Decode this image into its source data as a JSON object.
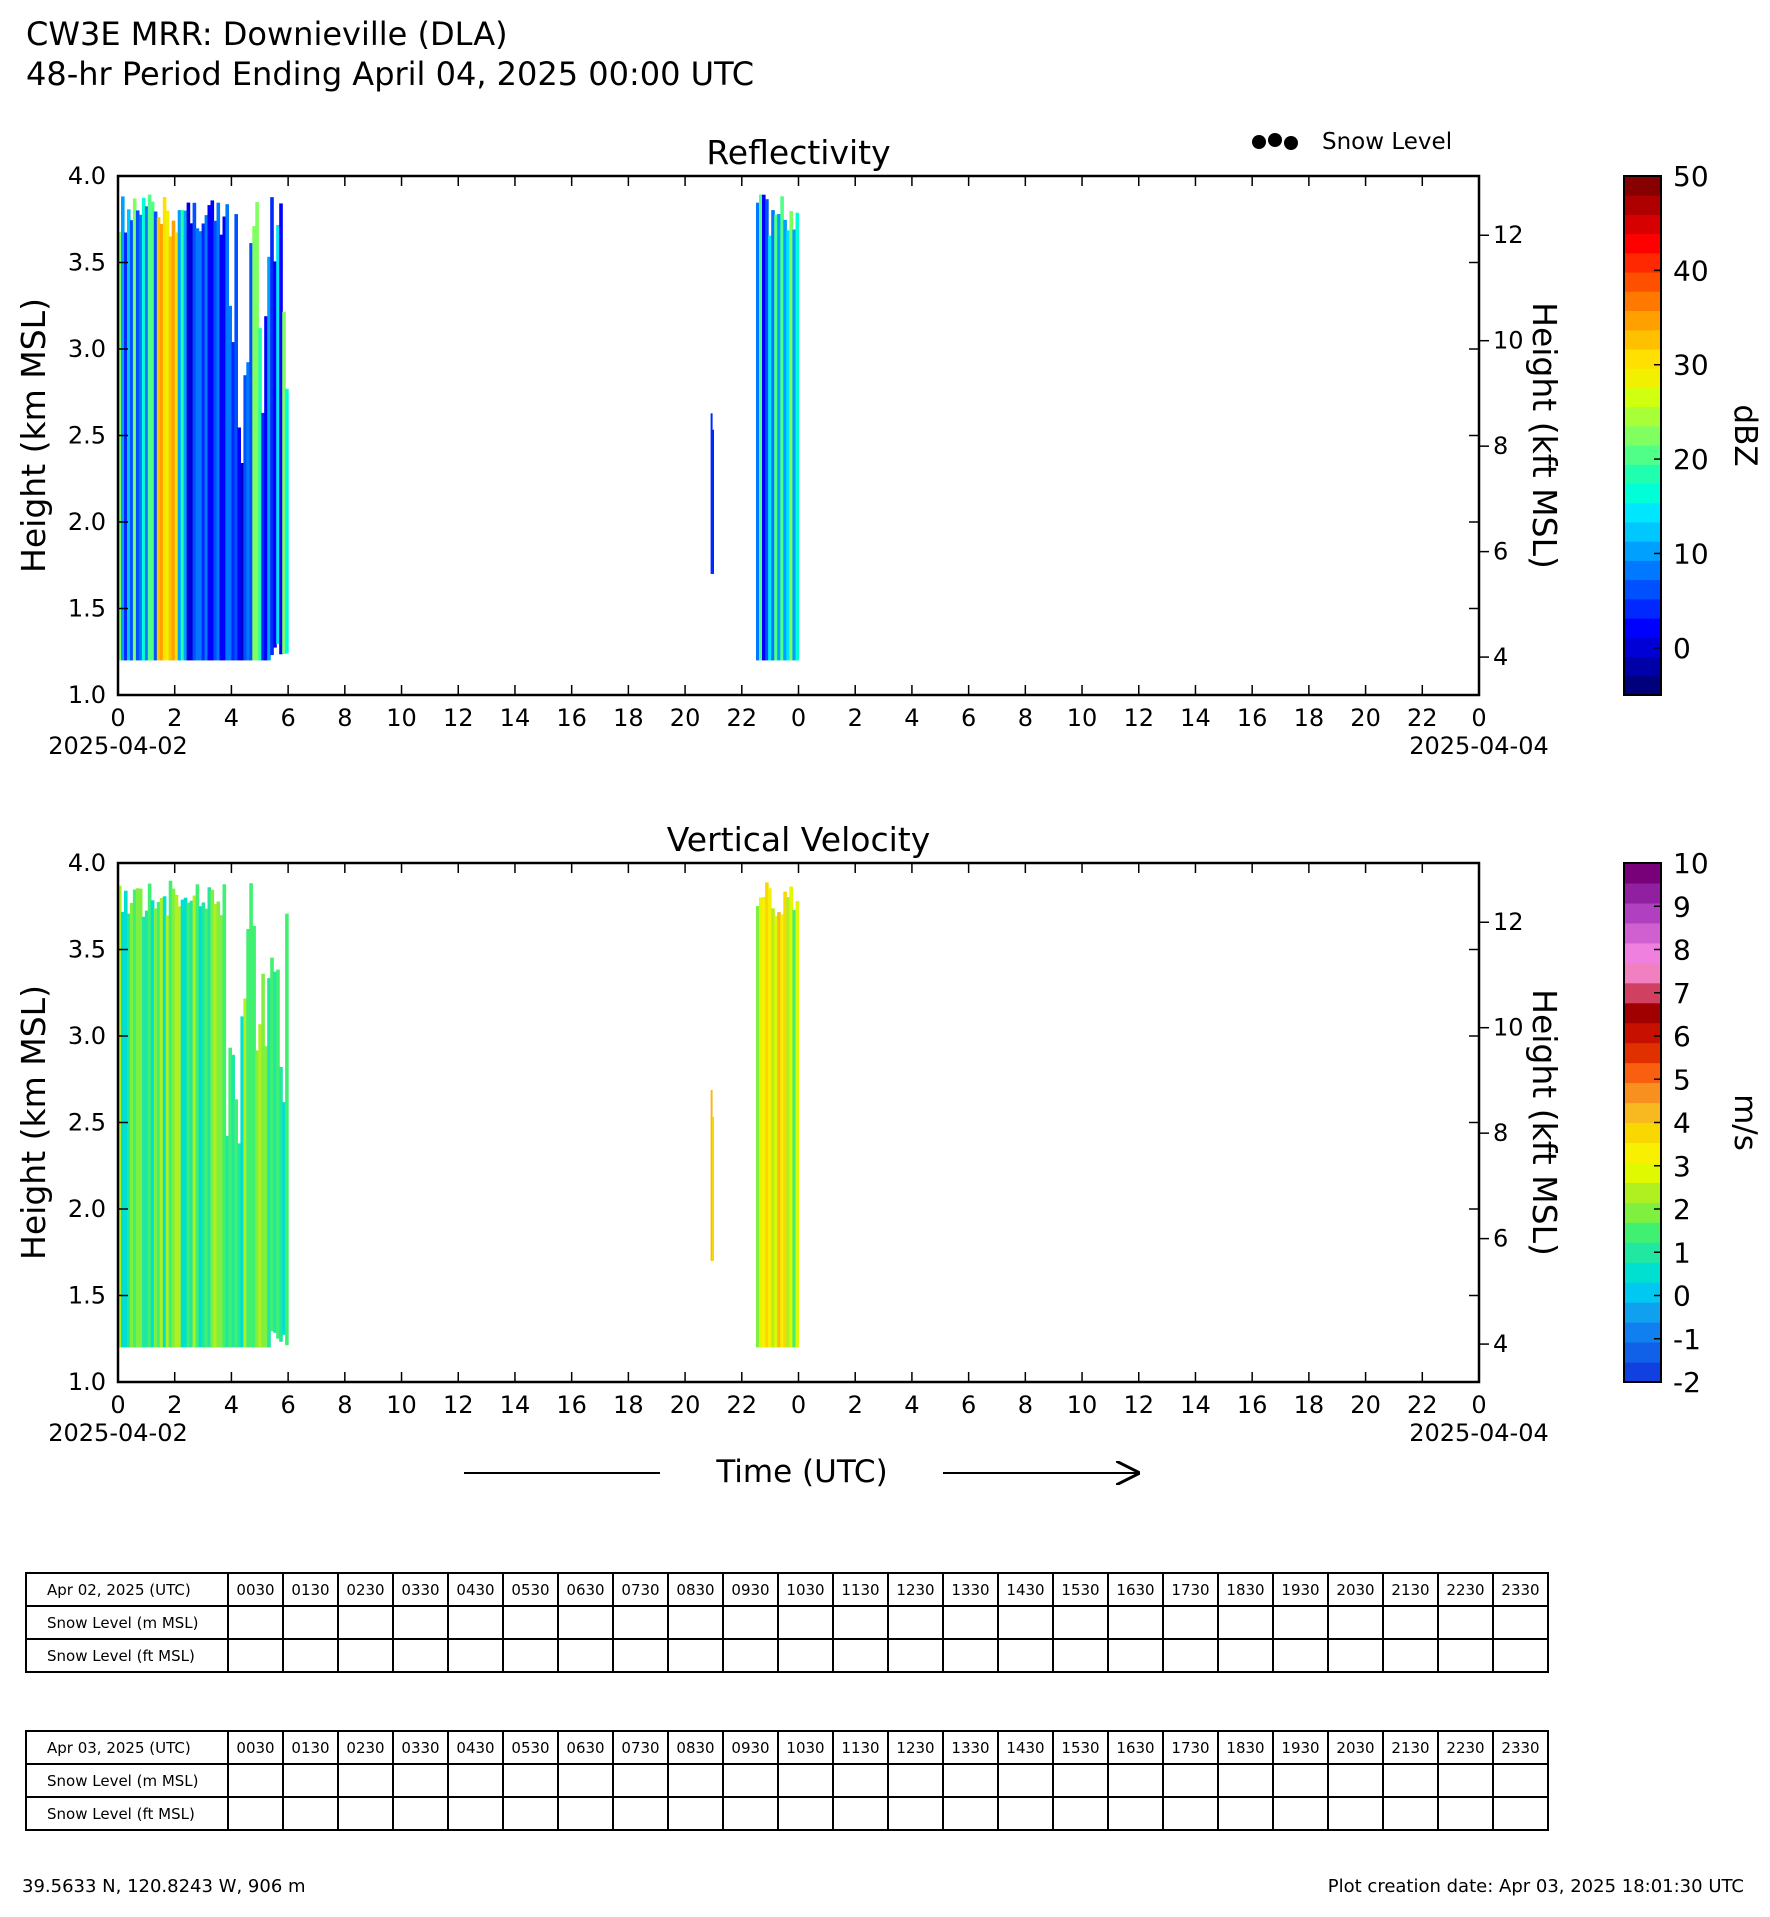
{
  "header": {
    "title_line1": "CW3E MRR: Downieville (DLA)",
    "title_line2": "48-hr Period Ending April 04, 2025 00:00 UTC"
  },
  "legend": {
    "snow_level_label": "Snow Level",
    "placement": "top-right"
  },
  "chart_data": [
    {
      "type": "heatmap",
      "title": "Reflectivity",
      "ylabel": "Height (km MSL)",
      "ylabel_right": "Height (kft MSL)",
      "xlabel": "Time (UTC)",
      "x_start_date": "2025-04-02",
      "x_end_date": "2025-04-04",
      "x_tick_labels": [
        "0",
        "2",
        "4",
        "6",
        "8",
        "10",
        "12",
        "14",
        "16",
        "18",
        "20",
        "22",
        "0",
        "2",
        "4",
        "6",
        "8",
        "10",
        "12",
        "14",
        "16",
        "18",
        "20",
        "22",
        "0"
      ],
      "xlim_hours": [
        0,
        48
      ],
      "ylim": [
        1.0,
        4.0
      ],
      "y_ticks": [
        1.0,
        1.5,
        2.0,
        2.5,
        3.0,
        3.5,
        4.0
      ],
      "y_tick_labels": [
        "1.0",
        "1.5",
        "2.0",
        "2.5",
        "3.0",
        "3.5",
        "4.0"
      ],
      "y_right_ticks_kft": [
        4,
        6,
        8,
        10,
        12
      ],
      "colorbar": {
        "label": "dBZ",
        "range": [
          -5,
          50
        ],
        "ticks": [
          "0",
          "10",
          "20",
          "30",
          "40",
          "50"
        ],
        "tick_values": [
          0,
          10,
          20,
          30,
          40,
          50
        ],
        "colors": [
          "#00007a",
          "#0000a8",
          "#0000d6",
          "#0000ff",
          "#0028ff",
          "#0050ff",
          "#0078ff",
          "#00a0ff",
          "#00c8ff",
          "#00e6ff",
          "#00ffd6",
          "#20ffb0",
          "#50ff88",
          "#80ff60",
          "#a8ff38",
          "#d0ff10",
          "#f0f000",
          "#ffe000",
          "#ffc000",
          "#ffa000",
          "#ff7800",
          "#ff5000",
          "#ff2800",
          "#ff0000",
          "#d60000",
          "#ae0000",
          "#860000"
        ]
      },
      "echo_regions": [
        {
          "t_start": 0.0,
          "t_end": 6.0,
          "z_bottom": 1.2,
          "z_top": 3.9,
          "dominant_dbz": "10-25",
          "max_dbz": 38
        },
        {
          "t_start": 20.9,
          "t_end": 21.0,
          "z_bottom": 1.7,
          "z_top": 2.7,
          "dominant_dbz": "0-5"
        },
        {
          "t_start": 22.5,
          "t_end": 24.0,
          "z_bottom": 1.2,
          "z_top": 3.9,
          "dominant_dbz": "5-20"
        }
      ]
    },
    {
      "type": "heatmap",
      "title": "Vertical Velocity",
      "ylabel": "Height (km MSL)",
      "ylabel_right": "Height (kft MSL)",
      "xlabel": "Time (UTC)",
      "x_start_date": "2025-04-02",
      "x_end_date": "2025-04-04",
      "x_tick_labels": [
        "0",
        "2",
        "4",
        "6",
        "8",
        "10",
        "12",
        "14",
        "16",
        "18",
        "20",
        "22",
        "0",
        "2",
        "4",
        "6",
        "8",
        "10",
        "12",
        "14",
        "16",
        "18",
        "20",
        "22",
        "0"
      ],
      "xlim_hours": [
        0,
        48
      ],
      "ylim": [
        1.0,
        4.0
      ],
      "y_ticks": [
        1.0,
        1.5,
        2.0,
        2.5,
        3.0,
        3.5,
        4.0
      ],
      "y_tick_labels": [
        "1.0",
        "1.5",
        "2.0",
        "2.5",
        "3.0",
        "3.5",
        "4.0"
      ],
      "y_right_ticks_kft": [
        4,
        6,
        8,
        10,
        12
      ],
      "colorbar": {
        "label": "m/s",
        "range": [
          -2,
          10
        ],
        "ticks": [
          "-2",
          "-1",
          "0",
          "1",
          "2",
          "3",
          "4",
          "5",
          "6",
          "7",
          "8",
          "9",
          "10"
        ],
        "tick_values": [
          -2,
          -1,
          0,
          1,
          2,
          3,
          4,
          5,
          6,
          7,
          8,
          9,
          10
        ],
        "colors": [
          "#1040e0",
          "#1060e8",
          "#1080f0",
          "#10a0f0",
          "#00c8f0",
          "#00e0d0",
          "#20e8a0",
          "#40f070",
          "#80f040",
          "#b0f020",
          "#e0f800",
          "#f8f000",
          "#f8d800",
          "#f8b820",
          "#f89020",
          "#f86010",
          "#e03000",
          "#c81000",
          "#a00000",
          "#d04060",
          "#f080c0",
          "#f080e0",
          "#d060d0",
          "#b040c0",
          "#9020a0",
          "#780078"
        ]
      },
      "echo_regions": [
        {
          "t_start": 0.0,
          "t_end": 6.0,
          "z_bottom": 1.2,
          "z_top": 3.9,
          "dominant_ms": "0.5-2"
        },
        {
          "t_start": 20.9,
          "t_end": 21.0,
          "z_bottom": 1.7,
          "z_top": 2.7,
          "dominant_ms": "3-4"
        },
        {
          "t_start": 22.5,
          "t_end": 24.0,
          "z_bottom": 1.2,
          "z_top": 3.9,
          "dominant_ms": "2-4"
        }
      ]
    }
  ],
  "snow_tables": [
    {
      "date_label": "Apr 02, 2025 (UTC)",
      "row_labels": [
        "Snow Level (m MSL)",
        "Snow Level (ft MSL)"
      ],
      "times": [
        "0030",
        "0130",
        "0230",
        "0330",
        "0430",
        "0530",
        "0630",
        "0730",
        "0830",
        "0930",
        "1030",
        "1130",
        "1230",
        "1330",
        "1430",
        "1530",
        "1630",
        "1730",
        "1830",
        "1930",
        "2030",
        "2130",
        "2230",
        "2330"
      ]
    },
    {
      "date_label": "Apr 03, 2025 (UTC)",
      "row_labels": [
        "Snow Level (m MSL)",
        "Snow Level (ft MSL)"
      ],
      "times": [
        "0030",
        "0130",
        "0230",
        "0330",
        "0430",
        "0530",
        "0630",
        "0730",
        "0830",
        "0930",
        "1030",
        "1130",
        "1230",
        "1330",
        "1430",
        "1530",
        "1630",
        "1730",
        "1830",
        "1930",
        "2030",
        "2130",
        "2230",
        "2330"
      ]
    }
  ],
  "footer": {
    "location": "39.5633 N, 120.8243 W, 906 m",
    "creation_date": "Plot creation date: Apr 03, 2025 18:01:30 UTC"
  }
}
